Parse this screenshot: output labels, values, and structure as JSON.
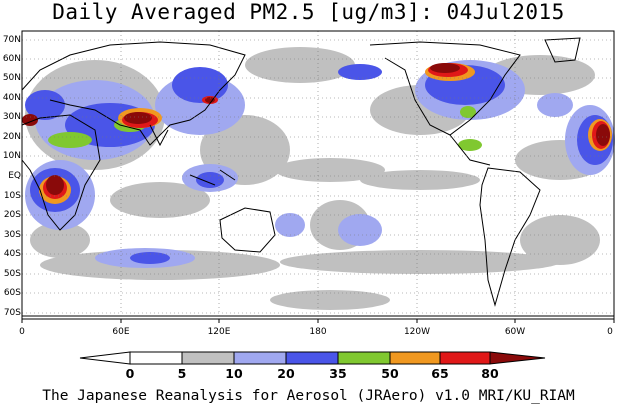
{
  "map": {
    "title": "Daily Averaged PM2.5 [ug/m3]: 04Jul2015",
    "footer": "The Japanese Reanalysis for Aerosol (JRAero) v1.0 MRI/KU_RIAM",
    "lat_labels": [
      "70N",
      "60N",
      "50N",
      "40N",
      "30N",
      "20N",
      "10N",
      "EQ",
      "10S",
      "20S",
      "30S",
      "40S",
      "50S",
      "60S",
      "70S"
    ],
    "lon_labels": [
      "0",
      "60E",
      "120E",
      "180",
      "120W",
      "60W",
      "0"
    ],
    "colorbar": {
      "labels": [
        "0",
        "5",
        "10",
        "20",
        "35",
        "50",
        "65",
        "80"
      ],
      "colors": [
        "#ffffff",
        "#c0c0c0",
        "#a0a8f0",
        "#4a55e8",
        "#80c830",
        "#f09820",
        "#e01818",
        "#8a0a0a"
      ]
    }
  }
}
